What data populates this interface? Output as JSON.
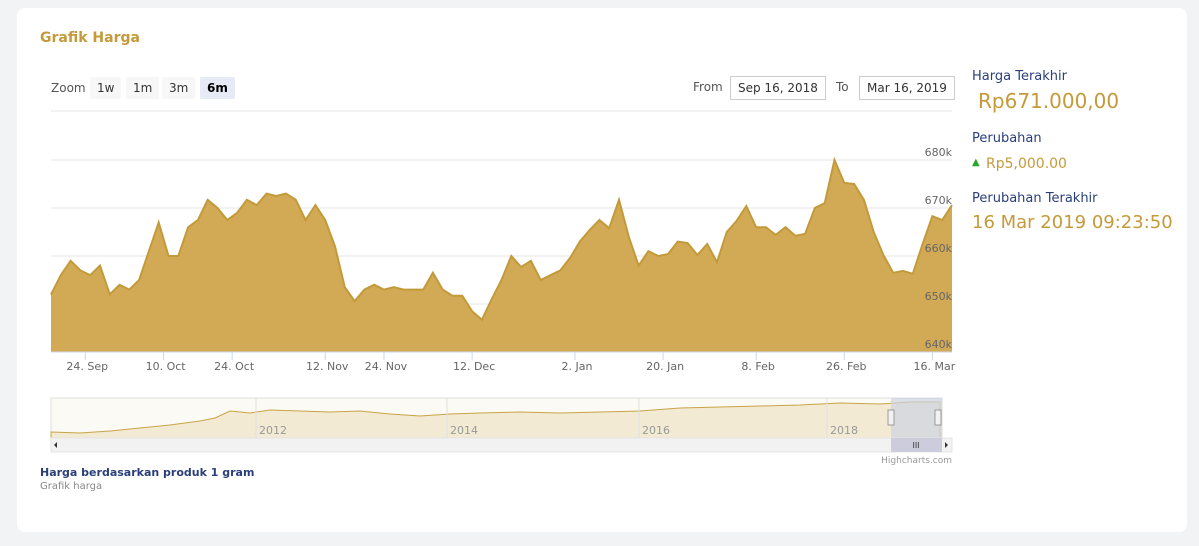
{
  "header": {
    "title": "Grafik Harga"
  },
  "zoom": {
    "label": "Zoom",
    "buttons": [
      "1w",
      "1m",
      "3m",
      "6m"
    ],
    "selected": "6m"
  },
  "range": {
    "from_label": "From",
    "from": "Sep 16, 2018",
    "to_label": "To",
    "to": "Mar 16, 2019"
  },
  "chart_data": {
    "type": "area",
    "color": "#d2aa55",
    "line_color": "#c29a3a",
    "grid": true,
    "x": [
      "2018-09-17",
      "2018-09-19",
      "2018-09-21",
      "2018-09-23",
      "2018-09-25",
      "2018-09-27",
      "2018-09-29",
      "2018-10-01",
      "2018-10-03",
      "2018-10-05",
      "2018-10-07",
      "2018-10-09",
      "2018-10-11",
      "2018-10-13",
      "2018-10-15",
      "2018-10-17",
      "2018-10-19",
      "2018-10-21",
      "2018-10-23",
      "2018-10-25",
      "2018-10-27",
      "2018-10-29",
      "2018-10-31",
      "2018-11-02",
      "2018-11-04",
      "2018-11-06",
      "2018-11-08",
      "2018-11-10",
      "2018-11-12",
      "2018-11-14",
      "2018-11-16",
      "2018-11-18",
      "2018-11-20",
      "2018-11-22",
      "2018-11-24",
      "2018-11-26",
      "2018-11-28",
      "2018-11-30",
      "2018-12-02",
      "2018-12-04",
      "2018-12-06",
      "2018-12-08",
      "2018-12-10",
      "2018-12-12",
      "2018-12-14",
      "2018-12-16",
      "2018-12-18",
      "2018-12-20",
      "2018-12-22",
      "2018-12-24",
      "2018-12-26",
      "2018-12-28",
      "2018-12-30",
      "2019-01-01",
      "2019-01-03",
      "2019-01-05",
      "2019-01-07",
      "2019-01-09",
      "2019-01-11",
      "2019-01-13",
      "2019-01-15",
      "2019-01-17",
      "2019-01-19",
      "2019-01-21",
      "2019-01-23",
      "2019-01-25",
      "2019-01-27",
      "2019-01-29",
      "2019-01-31",
      "2019-02-02",
      "2019-02-04",
      "2019-02-06",
      "2019-02-08",
      "2019-02-10",
      "2019-02-12",
      "2019-02-14",
      "2019-02-16",
      "2019-02-18",
      "2019-02-20",
      "2019-02-22",
      "2019-02-24",
      "2019-02-26",
      "2019-02-28",
      "2019-03-02",
      "2019-03-04",
      "2019-03-06",
      "2019-03-08",
      "2019-03-10",
      "2019-03-12",
      "2019-03-14",
      "2019-03-16",
      "2019-03-18",
      "2019-03-20"
    ],
    "values": [
      652000,
      656000,
      659000,
      657000,
      656000,
      658000,
      652000,
      654000,
      653000,
      655000,
      661000,
      667000,
      660000,
      660000,
      666000,
      667500,
      671700,
      670000,
      667500,
      669000,
      671700,
      670600,
      673000,
      672500,
      673000,
      671700,
      667500,
      670600,
      667500,
      662000,
      653500,
      650600,
      653000,
      654000,
      653000,
      653500,
      653000,
      653000,
      653000,
      656500,
      653000,
      651700,
      651700,
      648500,
      646700,
      651000,
      655000,
      660000,
      657700,
      659000,
      655000,
      656000,
      657000,
      659600,
      663000,
      665400,
      667500,
      665800,
      671700,
      664000,
      658000,
      661000,
      660000,
      660400,
      663000,
      662700,
      660200,
      662500,
      658700,
      665000,
      667300,
      670400,
      666000,
      666000,
      664400,
      666000,
      664200,
      664600,
      670000,
      671000,
      680000,
      675200,
      675000,
      671700,
      665000,
      660200,
      656500,
      656900,
      656300,
      662500,
      668300,
      667500,
      670600
    ],
    "xlim": [
      "2018-09-17",
      "2019-03-20"
    ],
    "xticks": [
      {
        "value": "2018-09-24",
        "label": "24. Sep"
      },
      {
        "value": "2018-10-10",
        "label": "10. Oct"
      },
      {
        "value": "2018-10-24",
        "label": "24. Oct"
      },
      {
        "value": "2018-11-12",
        "label": "12. Nov"
      },
      {
        "value": "2018-11-24",
        "label": "24. Nov"
      },
      {
        "value": "2018-12-12",
        "label": "12. Dec"
      },
      {
        "value": "2019-01-02",
        "label": "2. Jan"
      },
      {
        "value": "2019-01-20",
        "label": "20. Jan"
      },
      {
        "value": "2019-02-08",
        "label": "8. Feb"
      },
      {
        "value": "2019-02-26",
        "label": "26. Feb"
      },
      {
        "value": "2019-03-16",
        "label": "16. Mar"
      }
    ],
    "ylim": [
      640000,
      690000
    ],
    "yticks": [
      {
        "value": 640000,
        "label": "640k"
      },
      {
        "value": 650000,
        "label": "650k"
      },
      {
        "value": 660000,
        "label": "660k"
      },
      {
        "value": 670000,
        "label": "670k"
      },
      {
        "value": 680000,
        "label": "680k"
      }
    ]
  },
  "navigator": {
    "years": [
      "2012",
      "2014",
      "2016",
      "2018"
    ]
  },
  "credits": "Highcharts.com",
  "footer": {
    "title": "Harga berdasarkan produk 1 gram",
    "subtitle": "Grafik harga"
  },
  "sidebar": {
    "last_price_label": "Harga Terakhir",
    "last_price": "Rp671.000,00",
    "change_label": "Perubahan",
    "change": "Rp5,000.00",
    "last_change_label": "Perubahan Terakhir",
    "last_change": "16 Mar 2019 09:23:50"
  }
}
